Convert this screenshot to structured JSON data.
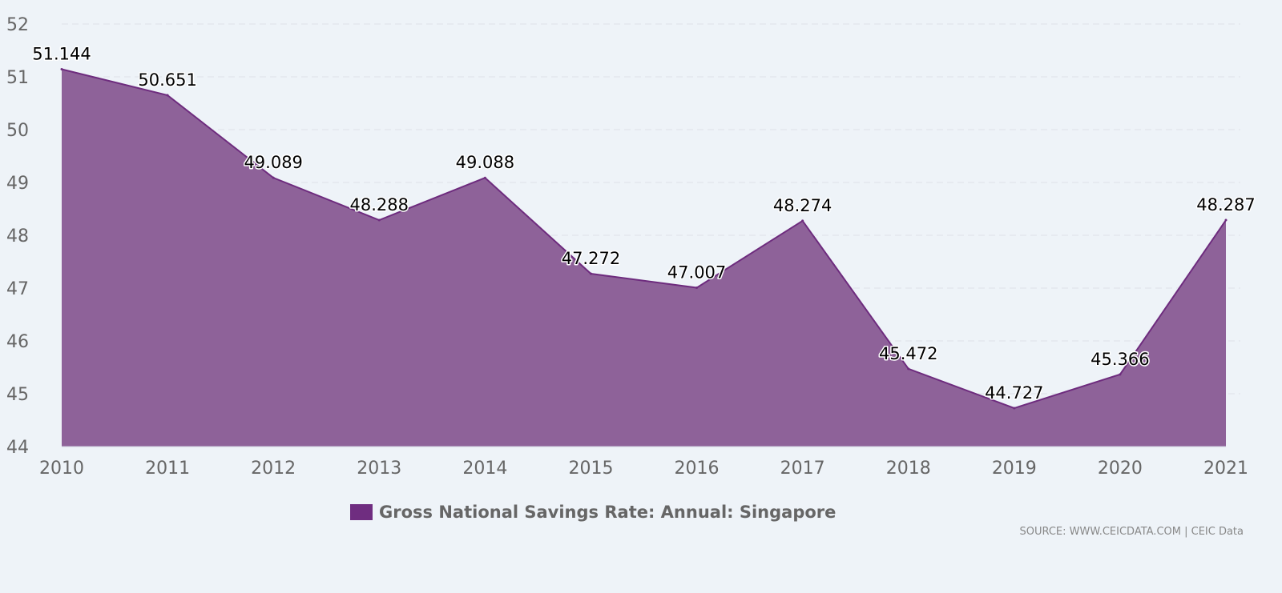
{
  "chart_data": {
    "type": "area",
    "x": [
      "2010",
      "2011",
      "2012",
      "2013",
      "2014",
      "2015",
      "2016",
      "2017",
      "2018",
      "2019",
      "2020",
      "2021"
    ],
    "series": [
      {
        "name": "Gross National Savings Rate: Annual: Singapore",
        "values": [
          51.144,
          50.651,
          49.089,
          48.288,
          49.088,
          47.272,
          47.007,
          48.274,
          45.472,
          44.727,
          45.366,
          48.287
        ]
      }
    ],
    "data_labels": [
      "51.144",
      "50.651",
      "49.089",
      "48.288",
      "49.088",
      "47.272",
      "47.007",
      "48.274",
      "45.472",
      "44.727",
      "45.366",
      "48.287"
    ],
    "yticks": [
      "44",
      "45",
      "46",
      "47",
      "48",
      "49",
      "50",
      "51",
      "52"
    ],
    "ylim": [
      44,
      52
    ],
    "grid": true,
    "legend_position": "bottom",
    "colors": {
      "fill": "#8e6299",
      "line": "#6e2c7e",
      "swatch": "#6f2d80"
    }
  },
  "legend": {
    "label": "Gross National Savings Rate: Annual: Singapore"
  },
  "source": "SOURCE: WWW.CEICDATA.COM | CEIC Data"
}
